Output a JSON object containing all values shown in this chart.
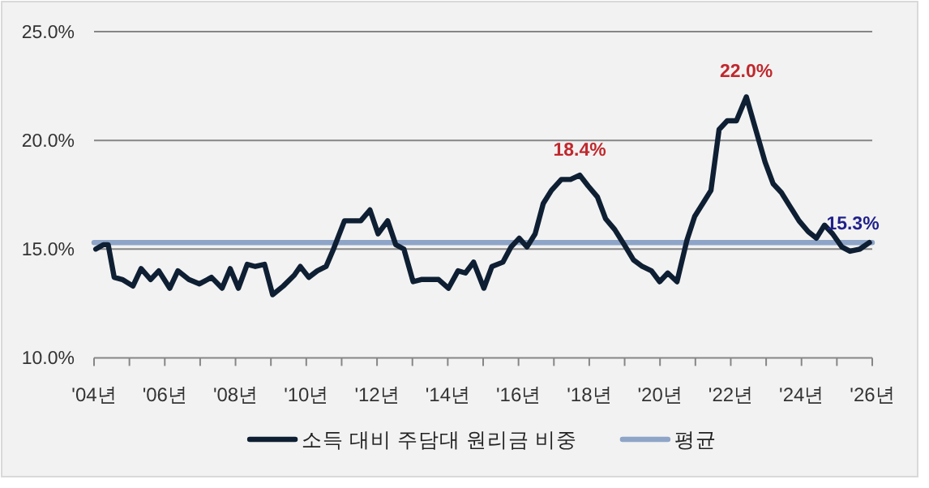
{
  "chart_data": {
    "type": "line",
    "x": [
      4.05,
      4.26,
      4.4,
      4.57,
      4.8,
      5.1,
      5.33,
      5.6,
      5.83,
      6.14,
      6.37,
      6.68,
      6.98,
      7.32,
      7.62,
      7.85,
      8.08,
      8.33,
      8.56,
      8.82,
      9.05,
      9.35,
      9.66,
      9.83,
      10.07,
      10.31,
      10.56,
      10.77,
      11.08,
      11.29,
      11.54,
      11.8,
      12.03,
      12.3,
      12.53,
      12.76,
      13.02,
      13.25,
      13.56,
      13.74,
      14.02,
      14.29,
      14.5,
      14.73,
      15.02,
      15.25,
      15.56,
      15.79,
      16.02,
      16.24,
      16.47,
      16.7,
      16.93,
      17.21,
      17.47,
      17.73,
      17.97,
      18.23,
      18.46,
      18.72,
      18.99,
      19.25,
      19.5,
      19.76,
      19.99,
      20.22,
      20.48,
      20.76,
      20.98,
      21.21,
      21.44,
      21.67,
      21.9,
      22.16,
      22.44,
      22.67,
      22.97,
      23.2,
      23.43,
      23.66,
      23.93,
      24.19,
      24.42,
      24.65,
      24.88,
      25.14,
      25.37,
      25.65,
      25.92
    ],
    "series": [
      {
        "name": "소득 대비 주담대 원리금 비중",
        "color": "#0f1f33",
        "values": [
          15.0,
          15.2,
          15.2,
          13.7,
          13.6,
          13.3,
          14.1,
          13.6,
          14.0,
          13.2,
          14.0,
          13.6,
          13.4,
          13.7,
          13.2,
          14.1,
          13.2,
          14.3,
          14.2,
          14.3,
          12.9,
          13.3,
          13.8,
          14.2,
          13.7,
          14.0,
          14.2,
          15.0,
          16.3,
          16.3,
          16.3,
          16.8,
          15.7,
          16.3,
          15.2,
          15.0,
          13.5,
          13.6,
          13.6,
          13.6,
          13.2,
          14.0,
          13.9,
          14.4,
          13.2,
          14.2,
          14.4,
          15.1,
          15.5,
          15.1,
          15.7,
          17.1,
          17.7,
          18.2,
          18.2,
          18.4,
          17.9,
          17.4,
          16.4,
          15.9,
          15.2,
          14.5,
          14.2,
          14.0,
          13.5,
          13.9,
          13.5,
          15.4,
          16.5,
          17.1,
          17.7,
          20.5,
          20.9,
          20.9,
          22.0,
          20.7,
          19.0,
          18.0,
          17.6,
          17.0,
          16.3,
          15.8,
          15.5,
          16.1,
          15.7,
          15.1,
          14.9,
          15.0,
          15.3
        ]
      },
      {
        "name": "평균",
        "color": "#8ea5c8",
        "x": [
          4,
          26
        ],
        "values": [
          15.3,
          15.3
        ]
      }
    ],
    "xlim": [
      4,
      26
    ],
    "xticks": [
      {
        "value": 4,
        "label": "'04년"
      },
      {
        "value": 5,
        "label": null
      },
      {
        "value": 6,
        "label": "'06년"
      },
      {
        "value": 7,
        "label": null
      },
      {
        "value": 8,
        "label": "'08년"
      },
      {
        "value": 9,
        "label": null
      },
      {
        "value": 10,
        "label": "'10년"
      },
      {
        "value": 11,
        "label": null
      },
      {
        "value": 12,
        "label": "'12년"
      },
      {
        "value": 13,
        "label": null
      },
      {
        "value": 14,
        "label": "'14년"
      },
      {
        "value": 15,
        "label": null
      },
      {
        "value": 16,
        "label": "'16년"
      },
      {
        "value": 17,
        "label": null
      },
      {
        "value": 18,
        "label": "'18년"
      },
      {
        "value": 19,
        "label": null
      },
      {
        "value": 20,
        "label": "'20년"
      },
      {
        "value": 21,
        "label": null
      },
      {
        "value": 22,
        "label": "'22년"
      },
      {
        "value": 23,
        "label": null
      },
      {
        "value": 24,
        "label": "'24년"
      },
      {
        "value": 25,
        "label": null
      },
      {
        "value": 26,
        "label": "'26년"
      }
    ],
    "ylim": [
      10,
      25
    ],
    "yticks": [
      {
        "value": 10,
        "label": "10.0%"
      },
      {
        "value": 15,
        "label": "15.0%"
      },
      {
        "value": 20,
        "label": "20.0%"
      },
      {
        "value": 25,
        "label": "25.0%"
      }
    ],
    "grid": "y",
    "legend": "bottom",
    "marker": "none",
    "annotations": [
      {
        "text": "18.4%",
        "x": 17.73,
        "y": 18.4
      },
      {
        "text": "22.0%",
        "x": 22.44,
        "y": 22.0
      },
      {
        "text": "15.3%",
        "x": 26,
        "y": 15.3
      }
    ]
  }
}
